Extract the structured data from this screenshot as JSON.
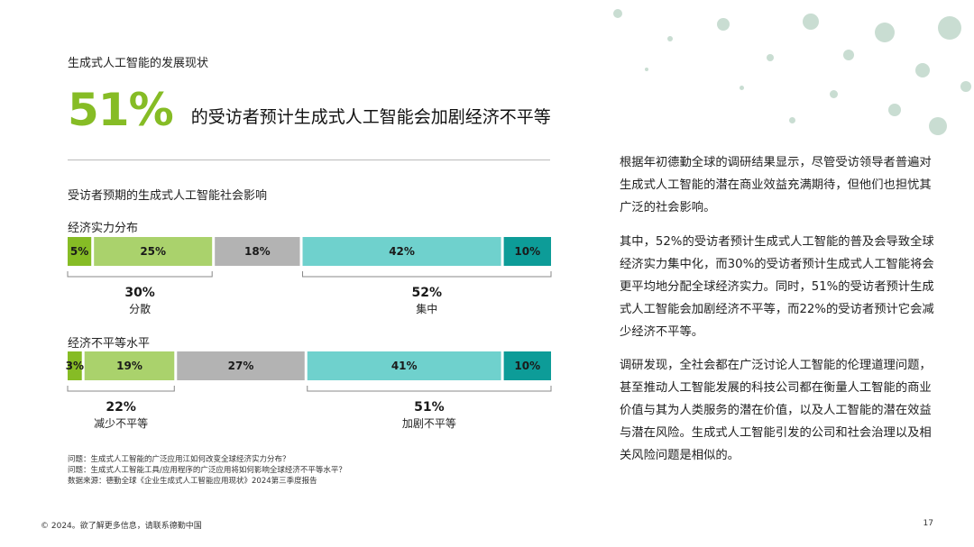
{
  "section_label": "生成式人工智能的发展现状",
  "headline": {
    "big_pct": "51%",
    "text": "的受访者预计生成式人工智能会加剧经济不平等"
  },
  "chart_title": "受访者预期的生成式人工智能社会影响",
  "chart_data": {
    "type": "bar",
    "title": "受访者预期的生成式人工智能社会影响",
    "stacked": true,
    "orientation": "horizontal",
    "xlim": [
      0,
      100
    ],
    "unit": "%",
    "categories": [
      "经济实力分布",
      "经济不平等水平"
    ],
    "rows": [
      {
        "label": "经济实力分布",
        "values": [
          5,
          25,
          18,
          42,
          10
        ],
        "labels": [
          "5%",
          "25%",
          "18%",
          "42%",
          "10%"
        ],
        "colors": [
          "#86bc25",
          "#aad26c",
          "#b3b3b3",
          "#6fd1cd",
          "#0d9c98"
        ],
        "groups": [
          {
            "pct": "30%",
            "name": "分散",
            "from": 0,
            "to": 1
          },
          {
            "pct": "52%",
            "name": "集中",
            "from": 3,
            "to": 4
          }
        ]
      },
      {
        "label": "经济不平等水平",
        "values": [
          3,
          19,
          27,
          41,
          10
        ],
        "labels": [
          "3%",
          "19%",
          "27%",
          "41%",
          "10%"
        ],
        "colors": [
          "#86bc25",
          "#aad26c",
          "#b3b3b3",
          "#6fd1cd",
          "#0d9c98"
        ],
        "groups": [
          {
            "pct": "22%",
            "name": "减少不平等",
            "from": 0,
            "to": 1
          },
          {
            "pct": "51%",
            "name": "加剧不平等",
            "from": 3,
            "to": 4
          }
        ]
      }
    ]
  },
  "notes": [
    "问题：生成式人工智能的广泛应用江如何改变全球经济实力分布？",
    "问题：生成式人工智能工具/应用程序的广泛应用将如何影响全球经济不平等水平？",
    "数据来源：德勤全球《企业生成式人工智能应用现状》2024第三季度报告"
  ],
  "paragraphs": [
    "根据年初德勤全球的调研结果显示，尽管受访领导者普遍对生成式人工智能的潜在商业效益充满期待，但他们也担忧其广泛的社会影响。",
    "其中，52%的受访者预计生成式人工智能的普及会导致全球经济实力集中化，而30%的受访者预计生成式人工智能将会更平均地分配全球经济实力。同时，51%的受访者预计生成式人工智能会加剧经济不平等，而22%的受访者预计它会减少经济不平等。",
    "调研发现，全社会都在广泛讨论人工智能的伦理道理问题，甚至推动人工智能发展的科技公司都在衡量人工智能的商业价值与其为人类服务的潜在价值，以及人工智能的潜在效益与潜在风险。生成式人工智能引发的公司和社会治理以及相关风险问题是相似的。"
  ],
  "footer": {
    "left": "© 2024。欲了解更多信息，请联系德勤中国",
    "page": "17"
  },
  "colors": {
    "accent_green": "#86bc25",
    "light_green": "#aad26c",
    "gray": "#b3b3b3",
    "light_teal": "#6fd1cd",
    "teal": "#0d9c98"
  }
}
